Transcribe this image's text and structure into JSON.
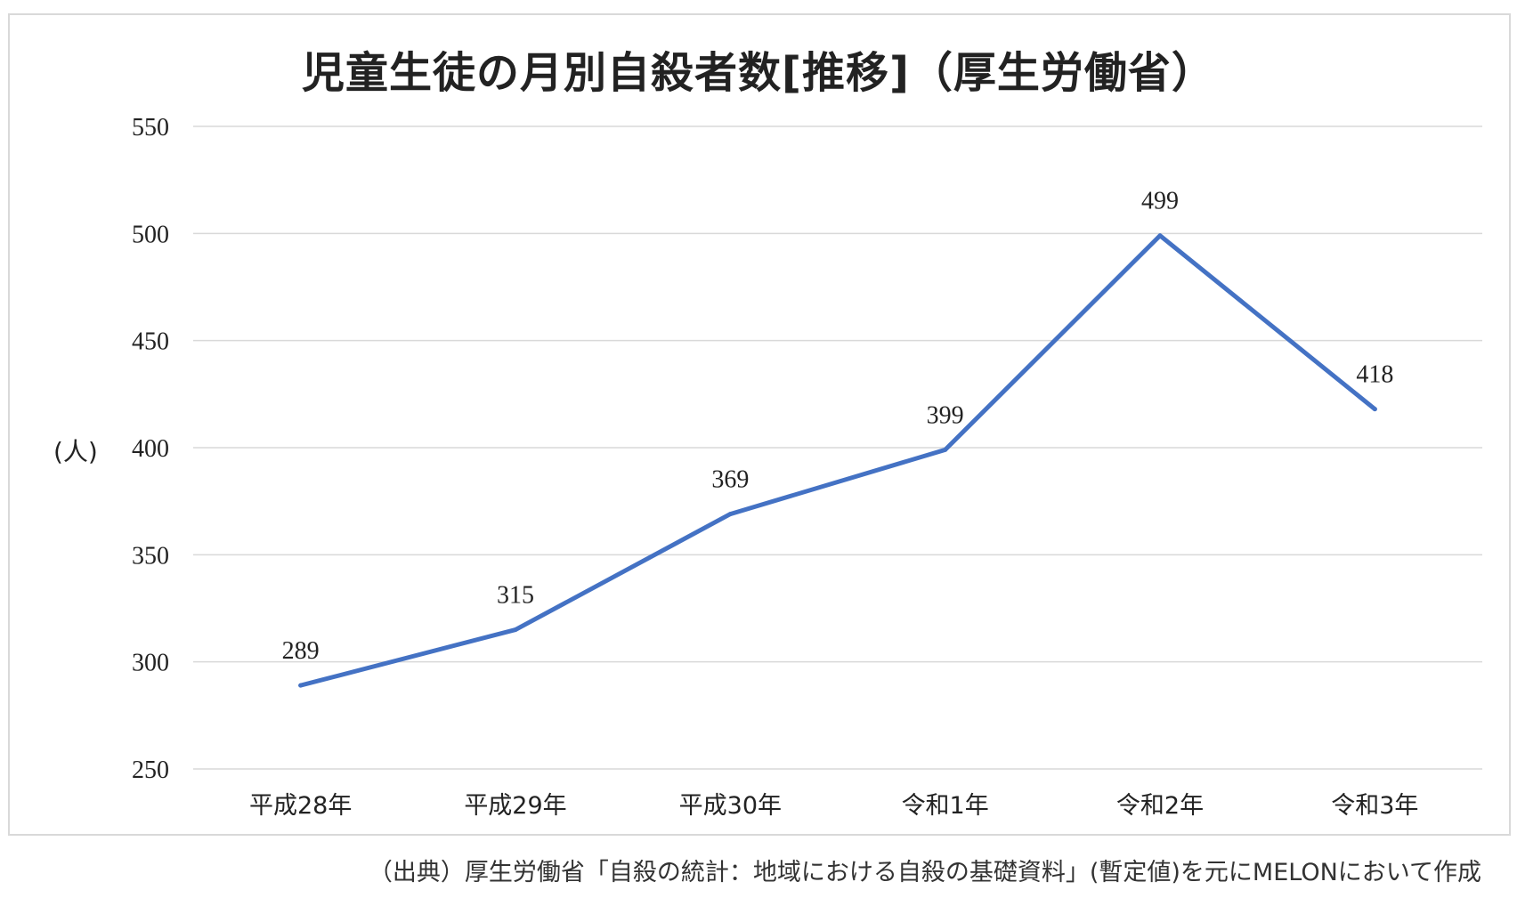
{
  "chart_data": {
    "type": "line",
    "title": "児童生徒の月別自殺者数[推移]（厚生労働省）",
    "ylabel": "(人)",
    "xlabel": "",
    "categories": [
      "平成28年",
      "平成29年",
      "平成30年",
      "令和1年",
      "令和2年",
      "令和3年"
    ],
    "series": [
      {
        "values": [
          289,
          315,
          369,
          399,
          499,
          418
        ],
        "color": "#4472c4"
      }
    ],
    "ylim": [
      250,
      550
    ],
    "yticks": [
      250,
      300,
      350,
      400,
      450,
      500,
      550
    ],
    "grid": true,
    "data_labels": true,
    "legend": "none"
  },
  "source_note": "（出典）厚生労働省「自殺の統計：地域における自殺の基礎資料」(暫定値)を元にMELONにおいて作成",
  "colors": {
    "line": "#4472c4",
    "grid": "#d9d9d9",
    "text": "#222222"
  }
}
